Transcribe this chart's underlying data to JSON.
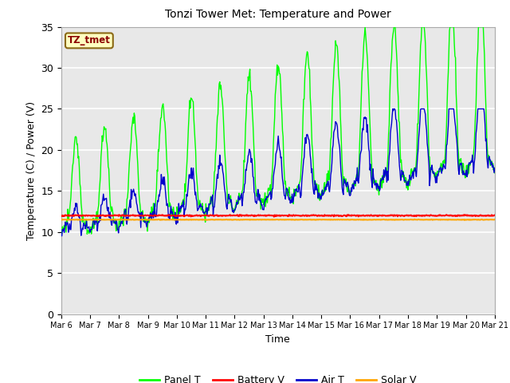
{
  "title": "Tonzi Tower Met: Temperature and Power",
  "xlabel": "Time",
  "ylabel": "Temperature (C) / Power (V)",
  "label_text": "TZ_tmet",
  "label_bg": "#FFFFC0",
  "label_fg": "#8B0000",
  "label_edge": "#8B6914",
  "ylim": [
    0,
    35
  ],
  "yticks": [
    0,
    5,
    10,
    15,
    20,
    25,
    30,
    35
  ],
  "n_days": 15,
  "xtick_labels": [
    "Mar 6",
    "Mar 7",
    "Mar 8",
    "Mar 9",
    "Mar 10",
    "Mar 11",
    "Mar 12",
    "Mar 13",
    "Mar 14",
    "Mar 15",
    "Mar 16",
    "Mar 17",
    "Mar 18",
    "Mar 19",
    "Mar 20",
    "Mar 21"
  ],
  "panel_color": "#00FF00",
  "battery_color": "#FF0000",
  "air_color": "#0000CC",
  "solar_color": "#FFA500",
  "fig_bg": "#FFFFFF",
  "plot_bg": "#E8E8E8",
  "grid_color": "#FFFFFF",
  "legend_labels": [
    "Panel T",
    "Battery V",
    "Air T",
    "Solar V"
  ],
  "battery_value": 12.0,
  "solar_value": 11.5
}
